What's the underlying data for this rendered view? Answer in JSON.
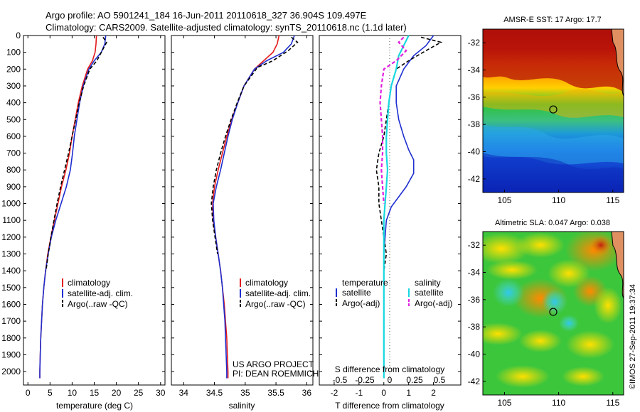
{
  "header": {
    "line1": "Argo profile: AO 5901241_184 16-Jun-2011 20110618_327 36.904S 109.497E",
    "line2": "Climatology: CARS2009. Satellite-adjusted climatology: synTS_20110618.nc (1.1d later)"
  },
  "credits": {
    "project": "US ARGO PROJECT",
    "pi": "PI: DEAN ROEMMICH",
    "stamp": "©IMOS 27-Sep-2011 19:37:34"
  },
  "colors": {
    "climatology": "#e41a1c",
    "satellite": "#1f2fd0",
    "argo": "#000000",
    "sat_salinity": "#18d8e0",
    "argo_salinity": "#e020e0"
  },
  "chart_data": [
    {
      "type": "line",
      "title": "",
      "xlabel": "temperature (deg C)",
      "ylabel": "",
      "xlim": [
        -1,
        31
      ],
      "ylim": [
        2080,
        0
      ],
      "xticks": [
        "0",
        "5",
        "10",
        "15",
        "20",
        "25",
        "30"
      ],
      "yticks": [
        "0",
        "100",
        "200",
        "300",
        "400",
        "500",
        "600",
        "700",
        "800",
        "900",
        "1000",
        "1100",
        "1200",
        "1300",
        "1400",
        "1500",
        "1600",
        "1700",
        "1800",
        "1900",
        "2000"
      ],
      "legend": [
        "climatology",
        "satellite-adj. clim.",
        "Argo(..raw -QC)"
      ],
      "series": [
        {
          "name": "climatology",
          "points": [
            [
              15.5,
              0
            ],
            [
              15.4,
              50
            ],
            [
              15.2,
              100
            ],
            [
              14.6,
              150
            ],
            [
              13.5,
              200
            ],
            [
              12.3,
              300
            ],
            [
              11.4,
              400
            ],
            [
              10.7,
              500
            ],
            [
              10.0,
              600
            ],
            [
              9.4,
              700
            ],
            [
              8.6,
              800
            ],
            [
              7.6,
              900
            ],
            [
              6.8,
              1000
            ],
            [
              6.0,
              1100
            ],
            [
              5.2,
              1200
            ],
            [
              4.5,
              1300
            ],
            [
              4.0,
              1400
            ],
            [
              3.6,
              1500
            ],
            [
              3.3,
              1600
            ],
            [
              3.1,
              1700
            ],
            [
              2.9,
              1800
            ],
            [
              2.8,
              1900
            ],
            [
              2.7,
              2000
            ],
            [
              2.7,
              2040
            ]
          ]
        },
        {
          "name": "satellite-adj. clim.",
          "points": [
            [
              17.6,
              0
            ],
            [
              17.4,
              50
            ],
            [
              16.6,
              100
            ],
            [
              15.0,
              150
            ],
            [
              13.8,
              200
            ],
            [
              12.5,
              300
            ],
            [
              11.7,
              400
            ],
            [
              11.1,
              500
            ],
            [
              10.5,
              600
            ],
            [
              10.1,
              700
            ],
            [
              9.6,
              800
            ],
            [
              8.7,
              900
            ],
            [
              7.5,
              1000
            ],
            [
              6.3,
              1100
            ],
            [
              5.3,
              1200
            ],
            [
              4.6,
              1300
            ],
            [
              4.0,
              1400
            ],
            [
              3.6,
              1500
            ],
            [
              3.3,
              1600
            ],
            [
              3.1,
              1700
            ],
            [
              2.9,
              1800
            ],
            [
              2.8,
              1900
            ],
            [
              2.7,
              2000
            ],
            [
              2.7,
              2040
            ]
          ]
        },
        {
          "name": "Argo(..raw -QC)",
          "points": [
            [
              17.0,
              10
            ],
            [
              17.8,
              40
            ],
            [
              16.8,
              90
            ],
            [
              15.6,
              150
            ],
            [
              14.0,
              200
            ],
            [
              12.6,
              300
            ],
            [
              11.6,
              400
            ],
            [
              10.8,
              500
            ],
            [
              10.0,
              600
            ],
            [
              9.2,
              700
            ],
            [
              8.3,
              800
            ],
            [
              7.4,
              900
            ],
            [
              6.6,
              1000
            ],
            [
              5.9,
              1100
            ],
            [
              5.2,
              1200
            ],
            [
              4.6,
              1300
            ],
            [
              4.1,
              1400
            ]
          ]
        }
      ]
    },
    {
      "type": "line",
      "title": "",
      "xlabel": "salinity",
      "ylabel": "",
      "xlim": [
        33.8,
        36.1
      ],
      "ylim": [
        2080,
        0
      ],
      "xticks": [
        "34",
        "34.5",
        "35",
        "35.5",
        "36"
      ],
      "legend": [
        "climatology",
        "satellite-adj. clim.",
        "Argo(..raw -QC)"
      ],
      "series": [
        {
          "name": "climatology",
          "points": [
            [
              35.55,
              0
            ],
            [
              35.52,
              50
            ],
            [
              35.45,
              100
            ],
            [
              35.3,
              150
            ],
            [
              35.15,
              200
            ],
            [
              34.98,
              300
            ],
            [
              34.88,
              400
            ],
            [
              34.78,
              500
            ],
            [
              34.7,
              600
            ],
            [
              34.63,
              700
            ],
            [
              34.56,
              800
            ],
            [
              34.5,
              900
            ],
            [
              34.47,
              1000
            ],
            [
              34.48,
              1100
            ],
            [
              34.52,
              1200
            ],
            [
              34.56,
              1300
            ],
            [
              34.6,
              1400
            ],
            [
              34.63,
              1500
            ],
            [
              34.66,
              1600
            ],
            [
              34.68,
              1700
            ],
            [
              34.7,
              1800
            ],
            [
              34.71,
              1900
            ],
            [
              34.72,
              2000
            ],
            [
              34.72,
              2040
            ]
          ]
        },
        {
          "name": "satellite-adj. clim.",
          "points": [
            [
              35.8,
              0
            ],
            [
              35.75,
              50
            ],
            [
              35.62,
              100
            ],
            [
              35.35,
              150
            ],
            [
              35.15,
              200
            ],
            [
              34.98,
              300
            ],
            [
              34.88,
              400
            ],
            [
              34.79,
              500
            ],
            [
              34.72,
              600
            ],
            [
              34.66,
              700
            ],
            [
              34.6,
              800
            ],
            [
              34.53,
              900
            ],
            [
              34.48,
              1000
            ],
            [
              34.49,
              1100
            ],
            [
              34.52,
              1200
            ],
            [
              34.56,
              1300
            ],
            [
              34.6,
              1400
            ],
            [
              34.63,
              1500
            ],
            [
              34.65,
              1600
            ],
            [
              34.67,
              1700
            ],
            [
              34.68,
              1800
            ],
            [
              34.69,
              1900
            ],
            [
              34.7,
              2000
            ],
            [
              34.7,
              2040
            ]
          ]
        },
        {
          "name": "Argo(..raw -QC)",
          "points": [
            [
              35.75,
              10
            ],
            [
              35.85,
              40
            ],
            [
              35.7,
              90
            ],
            [
              35.45,
              150
            ],
            [
              35.2,
              190
            ],
            [
              34.98,
              300
            ],
            [
              34.87,
              400
            ],
            [
              34.77,
              500
            ],
            [
              34.68,
              600
            ],
            [
              34.6,
              700
            ],
            [
              34.53,
              800
            ],
            [
              34.48,
              900
            ],
            [
              34.45,
              1000
            ],
            [
              34.47,
              1100
            ],
            [
              34.51,
              1200
            ],
            [
              34.55,
              1300
            ]
          ]
        }
      ]
    },
    {
      "type": "line",
      "title": "",
      "xlabel": "T difference from climatology",
      "xlabel2": "S difference from climatology",
      "ylabel": "",
      "xlim": [
        -2.6,
        3.1
      ],
      "ylim": [
        2080,
        0
      ],
      "xticks": [
        "-2",
        "-1",
        "0",
        "1",
        "2"
      ],
      "xticks2": [
        "-0.5",
        "-0.25",
        "0",
        "0.25",
        "0.5"
      ],
      "legend_groups": [
        "temperature",
        "salinity"
      ],
      "legend": [
        "satellite",
        "Argo(-adj)",
        "satellite",
        "Argo(-adj)"
      ],
      "series": [
        {
          "name": "satellite",
          "group": "temperature",
          "points": [
            [
              2.0,
              0
            ],
            [
              1.7,
              60
            ],
            [
              1.2,
              120
            ],
            [
              0.8,
              200
            ],
            [
              0.5,
              300
            ],
            [
              0.5,
              400
            ],
            [
              0.6,
              500
            ],
            [
              0.8,
              600
            ],
            [
              1.0,
              680
            ],
            [
              1.2,
              740
            ],
            [
              1.2,
              820
            ],
            [
              0.9,
              900
            ],
            [
              0.6,
              960
            ],
            [
              0.3,
              1020
            ],
            [
              0.1,
              1100
            ],
            [
              0.05,
              1200
            ],
            [
              0,
              1300
            ],
            [
              0,
              2040
            ]
          ]
        },
        {
          "name": "Argo(-adj)",
          "group": "temperature",
          "points": [
            [
              1.5,
              10
            ],
            [
              2.3,
              40
            ],
            [
              1.7,
              90
            ],
            [
              1.0,
              150
            ],
            [
              0.5,
              200
            ],
            [
              0.3,
              300
            ],
            [
              0.2,
              400
            ],
            [
              0.1,
              500
            ],
            [
              0,
              600
            ],
            [
              -0.2,
              700
            ],
            [
              -0.3,
              800
            ],
            [
              -0.2,
              900
            ],
            [
              -0.2,
              1000
            ],
            [
              -0.1,
              1100
            ],
            [
              0,
              1200
            ],
            [
              0.1,
              1300
            ],
            [
              0,
              1400
            ]
          ]
        },
        {
          "name": "satellite",
          "group": "salinity",
          "points": [
            [
              1.0,
              0
            ],
            [
              0.8,
              60
            ],
            [
              0.6,
              120
            ],
            [
              0.5,
              200
            ],
            [
              0.3,
              300
            ],
            [
              0.2,
              400
            ],
            [
              0.15,
              500
            ],
            [
              0.1,
              600
            ],
            [
              0.1,
              700
            ],
            [
              0.15,
              800
            ],
            [
              0.1,
              900
            ],
            [
              0.05,
              1000
            ],
            [
              0,
              1100
            ],
            [
              0,
              2040
            ]
          ]
        },
        {
          "name": "Argo(-adj)",
          "group": "salinity",
          "points": [
            [
              0.8,
              10
            ],
            [
              0.6,
              40
            ],
            [
              0.9,
              90
            ],
            [
              0.5,
              150
            ],
            [
              0,
              200
            ],
            [
              -0.1,
              300
            ],
            [
              -0.15,
              400
            ],
            [
              -0.1,
              500
            ],
            [
              -0.05,
              600
            ],
            [
              -0.05,
              700
            ],
            [
              -0.1,
              800
            ],
            [
              -0.05,
              900
            ],
            [
              0,
              1000
            ]
          ]
        }
      ]
    },
    {
      "type": "heatmap",
      "title": "AMSR-E SST: 17 Argo: 17.7",
      "xlim": [
        103,
        116
      ],
      "ylim": [
        -43,
        -31
      ],
      "xticks": [
        "105",
        "110",
        "115"
      ],
      "yticks": [
        "-32",
        "-34",
        "-36",
        "-38",
        "-40",
        "-42"
      ],
      "marker": {
        "lon": 109.5,
        "lat": -36.9
      }
    },
    {
      "type": "heatmap",
      "title": "Altimetric SLA: 0.047 Argo: 0.038",
      "xlim": [
        103,
        116
      ],
      "ylim": [
        -43,
        -31
      ],
      "xticks": [
        "105",
        "110",
        "115"
      ],
      "yticks": [
        "-32",
        "-34",
        "-36",
        "-38",
        "-40",
        "-42"
      ],
      "marker": {
        "lon": 109.5,
        "lat": -36.9
      }
    }
  ]
}
